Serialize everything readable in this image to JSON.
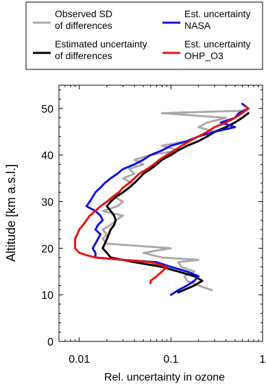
{
  "chart_data": {
    "type": "line",
    "title": "",
    "xlabel": "Rel. uncertainty in ozone",
    "ylabel": "Altitude [km a.s.l.]",
    "x_scale": "log",
    "xlim": [
      0.006,
      1
    ],
    "ylim": [
      0,
      55
    ],
    "x_ticks": [
      0.01,
      0.1,
      1
    ],
    "x_tick_labels": [
      "0.01",
      "0.1",
      "1"
    ],
    "y_ticks": [
      0,
      10,
      20,
      30,
      40,
      50
    ],
    "y_tick_labels": [
      "0",
      "10",
      "20",
      "30",
      "40",
      "50"
    ],
    "grid": false,
    "legend_position": "top",
    "series": [
      {
        "name": "Observed SD of differences",
        "label_lines": [
          "Observed SD",
          "of differences"
        ],
        "color": "#aaaaaa",
        "points": [
          [
            0.28,
            11
          ],
          [
            0.2,
            12
          ],
          [
            0.15,
            13
          ],
          [
            0.14,
            14
          ],
          [
            0.18,
            15
          ],
          [
            0.13,
            16
          ],
          [
            0.12,
            17
          ],
          [
            0.2,
            17.5
          ],
          [
            0.08,
            18
          ],
          [
            0.05,
            19
          ],
          [
            0.1,
            20
          ],
          [
            0.02,
            21
          ],
          [
            0.018,
            22
          ],
          [
            0.02,
            23
          ],
          [
            0.018,
            24
          ],
          [
            0.022,
            25
          ],
          [
            0.025,
            26
          ],
          [
            0.03,
            27
          ],
          [
            0.018,
            28
          ],
          [
            0.026,
            29
          ],
          [
            0.03,
            30
          ],
          [
            0.024,
            31
          ],
          [
            0.03,
            32
          ],
          [
            0.035,
            33
          ],
          [
            0.038,
            34
          ],
          [
            0.03,
            35
          ],
          [
            0.04,
            36
          ],
          [
            0.035,
            37
          ],
          [
            0.05,
            38
          ],
          [
            0.04,
            39
          ],
          [
            0.06,
            40
          ],
          [
            0.12,
            41
          ],
          [
            0.08,
            42
          ],
          [
            0.15,
            43
          ],
          [
            0.2,
            44
          ],
          [
            0.3,
            45
          ],
          [
            0.2,
            46
          ],
          [
            0.25,
            47
          ],
          [
            0.4,
            48
          ],
          [
            0.08,
            49
          ],
          [
            0.6,
            49.5
          ]
        ]
      },
      {
        "name": "Estimated uncertainty of differences",
        "label_lines": [
          "Estimated uncertainty",
          "of differences"
        ],
        "color": "#000000",
        "points": [
          [
            0.12,
            10.5
          ],
          [
            0.18,
            12
          ],
          [
            0.22,
            13
          ],
          [
            0.18,
            14
          ],
          [
            0.12,
            15
          ],
          [
            0.08,
            16
          ],
          [
            0.04,
            17
          ],
          [
            0.03,
            17.5
          ],
          [
            0.022,
            18
          ],
          [
            0.02,
            19
          ],
          [
            0.018,
            20
          ],
          [
            0.019,
            21
          ],
          [
            0.02,
            22
          ],
          [
            0.021,
            23
          ],
          [
            0.022,
            24
          ],
          [
            0.024,
            25
          ],
          [
            0.025,
            26
          ],
          [
            0.024,
            27
          ],
          [
            0.022,
            28
          ],
          [
            0.02,
            29
          ],
          [
            0.022,
            30
          ],
          [
            0.025,
            31
          ],
          [
            0.03,
            32
          ],
          [
            0.035,
            33
          ],
          [
            0.04,
            34
          ],
          [
            0.045,
            35
          ],
          [
            0.05,
            36
          ],
          [
            0.06,
            37
          ],
          [
            0.07,
            38
          ],
          [
            0.08,
            39
          ],
          [
            0.1,
            40
          ],
          [
            0.12,
            41
          ],
          [
            0.15,
            42
          ],
          [
            0.2,
            43
          ],
          [
            0.25,
            44
          ],
          [
            0.3,
            45
          ],
          [
            0.4,
            46
          ],
          [
            0.5,
            47
          ],
          [
            0.6,
            48
          ],
          [
            0.7,
            49
          ]
        ]
      },
      {
        "name": "Est. uncertainty NASA",
        "label_lines": [
          "Est. uncertainty",
          "NASA"
        ],
        "color": "#1010e0",
        "points": [
          [
            0.1,
            10
          ],
          [
            0.12,
            11
          ],
          [
            0.15,
            12
          ],
          [
            0.18,
            13
          ],
          [
            0.2,
            14
          ],
          [
            0.15,
            15
          ],
          [
            0.1,
            16
          ],
          [
            0.07,
            17
          ],
          [
            0.03,
            17.5
          ],
          [
            0.015,
            18
          ],
          [
            0.015,
            19
          ],
          [
            0.014,
            20
          ],
          [
            0.015,
            21
          ],
          [
            0.016,
            22
          ],
          [
            0.017,
            23
          ],
          [
            0.015,
            24
          ],
          [
            0.016,
            25
          ],
          [
            0.018,
            26
          ],
          [
            0.017,
            27
          ],
          [
            0.015,
            28
          ],
          [
            0.012,
            29
          ],
          [
            0.013,
            30
          ],
          [
            0.014,
            31
          ],
          [
            0.015,
            32
          ],
          [
            0.017,
            33
          ],
          [
            0.019,
            34
          ],
          [
            0.022,
            35
          ],
          [
            0.026,
            36
          ],
          [
            0.03,
            37
          ],
          [
            0.04,
            38
          ],
          [
            0.05,
            39
          ],
          [
            0.06,
            40
          ],
          [
            0.08,
            41
          ],
          [
            0.1,
            42
          ],
          [
            0.15,
            43
          ],
          [
            0.2,
            44
          ],
          [
            0.3,
            45
          ],
          [
            0.5,
            46
          ],
          [
            0.35,
            47
          ],
          [
            0.5,
            48
          ],
          [
            0.55,
            49
          ],
          [
            0.7,
            50
          ],
          [
            0.6,
            51
          ]
        ]
      },
      {
        "name": "Est. uncertainty OHP_O3",
        "label_lines": [
          "Est. uncertainty",
          "OHP_O3"
        ],
        "color": "#ee1010",
        "points": [
          [
            0.06,
            12.5
          ],
          [
            0.06,
            13
          ],
          [
            0.07,
            14
          ],
          [
            0.08,
            15
          ],
          [
            0.09,
            16
          ],
          [
            0.06,
            17
          ],
          [
            0.03,
            17.5
          ],
          [
            0.015,
            18
          ],
          [
            0.012,
            18.5
          ],
          [
            0.01,
            19
          ],
          [
            0.009,
            20
          ],
          [
            0.009,
            21
          ],
          [
            0.009,
            22
          ],
          [
            0.0095,
            23
          ],
          [
            0.01,
            24
          ],
          [
            0.011,
            25
          ],
          [
            0.012,
            26
          ],
          [
            0.013,
            27
          ],
          [
            0.015,
            28
          ],
          [
            0.017,
            29
          ],
          [
            0.02,
            30
          ],
          [
            0.023,
            31
          ],
          [
            0.027,
            32
          ],
          [
            0.03,
            33
          ],
          [
            0.035,
            34
          ],
          [
            0.04,
            35
          ],
          [
            0.045,
            36
          ],
          [
            0.055,
            37
          ],
          [
            0.065,
            38
          ],
          [
            0.075,
            39
          ],
          [
            0.09,
            40
          ],
          [
            0.11,
            41
          ],
          [
            0.13,
            42
          ],
          [
            0.16,
            43
          ],
          [
            0.2,
            44
          ],
          [
            0.25,
            45
          ],
          [
            0.3,
            46
          ],
          [
            0.4,
            47
          ],
          [
            0.5,
            48
          ],
          [
            0.6,
            49
          ],
          [
            0.7,
            50
          ],
          [
            0.65,
            50.5
          ]
        ]
      }
    ]
  }
}
